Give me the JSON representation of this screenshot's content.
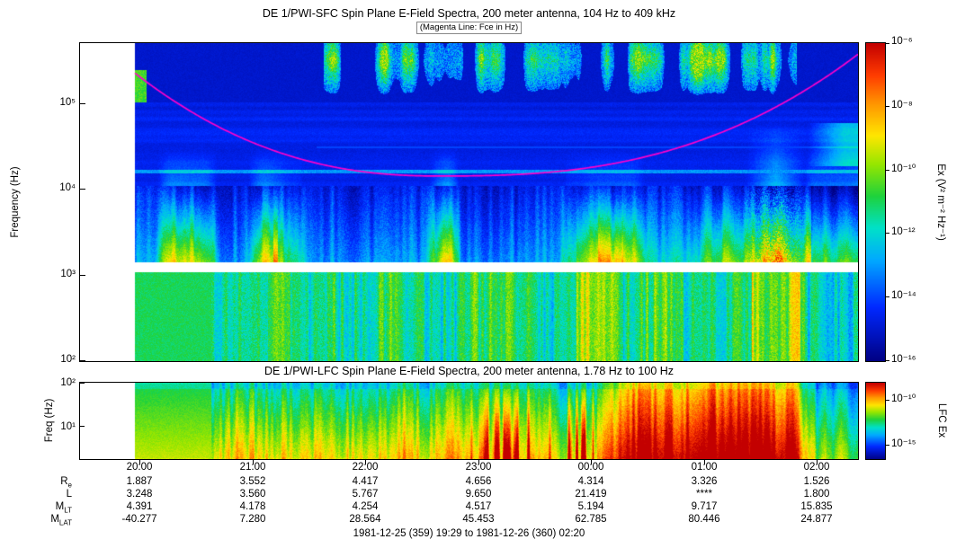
{
  "chart_data": [
    {
      "id": "sfc",
      "type": "heatmap",
      "instrument": "DE 1/PWI-SFC",
      "title": "DE 1/PWI-SFC  Spin Plane E-Field Spectra, 200 meter antenna, 104 Hz to 409 kHz",
      "subtitle": "(Magenta Line: Fce in Hz)",
      "ylabel": "Frequency (Hz)",
      "y_scale": "log",
      "freq_range_hz": [
        104,
        409000
      ],
      "yticks": [
        {
          "label": "10⁵",
          "log10": 5
        },
        {
          "label": "10⁴",
          "log10": 4
        },
        {
          "label": "10³",
          "log10": 3
        },
        {
          "label": "10²",
          "log10": 2
        }
      ],
      "xticks": [
        "20:00",
        "21:00",
        "22:00",
        "23:00",
        "00:00",
        "01:00",
        "02:00"
      ],
      "colorbar": {
        "label": "Ex (V² m⁻² Hz⁻¹)",
        "ticks": [
          {
            "label": "10⁻⁶"
          },
          {
            "label": "10⁻⁸"
          },
          {
            "label": "10⁻¹⁰"
          },
          {
            "label": "10⁻¹²"
          },
          {
            "label": "10⁻¹⁴"
          },
          {
            "label": "10⁻¹⁶"
          }
        ]
      },
      "overlay_line": {
        "name": "Fce",
        "color": "#ff00cc"
      },
      "features": [
        "no-data white gap on left edge before ~19:58",
        "white horizontal no-data band just above 10^3 Hz",
        "patchy cyan-green auroral kilometric radiation above 10^5 Hz from ~21:40 to ~01:40",
        "broad green VLF band below 1 kHz across entire interval",
        "green-yellow enhancement rising to ~50 kHz near 01:20-01:40",
        "magenta electron cyclotron frequency (Fce) curve: high at both ends, minimum ~1.5x10^4 Hz near 22:30-23:30"
      ]
    },
    {
      "id": "lfc",
      "type": "heatmap",
      "instrument": "DE 1/PWI-LFC",
      "title": "DE 1/PWI-LFC  Spin Plane E-Field Spectra, 200 meter antenna, 1.78 Hz to 100 Hz",
      "ylabel": "Freq (Hz)",
      "y_scale": "log",
      "freq_range_hz": [
        1.78,
        100
      ],
      "yticks": [
        {
          "label": "10²",
          "log10": 2
        },
        {
          "label": "10¹",
          "log10": 1
        }
      ],
      "xticks": [
        "20:00",
        "21:00",
        "22:00",
        "23:00",
        "00:00",
        "01:00",
        "02:00"
      ],
      "colorbar": {
        "label": "LFC Ex",
        "ticks": [
          {
            "label": "10⁻¹⁰"
          },
          {
            "label": "10⁻¹⁵"
          }
        ]
      },
      "features": [
        "green near 100 Hz grading to yellow/orange at low frequencies",
        "intense red band from ~00:20 to ~01:40",
        "weaker cyan-green region after ~01:45"
      ]
    }
  ],
  "time_axis": {
    "tick_labels": [
      "20:00",
      "21:00",
      "22:00",
      "23:00",
      "00:00",
      "01:00",
      "02:00"
    ]
  },
  "ephemeris": {
    "rows": [
      {
        "main": "R",
        "sub": "e",
        "values": [
          "1.887",
          "3.552",
          "4.417",
          "4.656",
          "4.314",
          "3.326",
          "1.526"
        ]
      },
      {
        "main": "L",
        "sub": "",
        "values": [
          "3.248",
          "3.560",
          "5.767",
          "9.650",
          "21.419",
          "****",
          "1.800"
        ]
      },
      {
        "main": "M",
        "sub": "LT",
        "values": [
          "4.391",
          "4.178",
          "4.254",
          "4.517",
          "5.194",
          "9.717",
          "15.835"
        ]
      },
      {
        "main": "M",
        "sub": "LAT",
        "values": [
          "-40.277",
          "7.280",
          "28.564",
          "45.453",
          "62.785",
          "80.446",
          "24.877"
        ]
      }
    ]
  },
  "footer": "1981-12-25 (359) 19:29 to 1981-12-26 (360) 02:20"
}
